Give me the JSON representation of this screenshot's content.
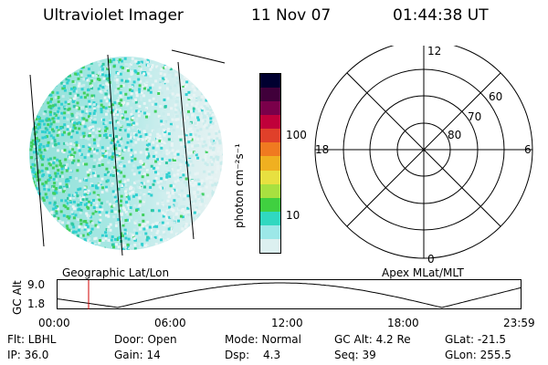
{
  "header": {
    "title": "Ultraviolet Imager",
    "date": "11 Nov 07",
    "time": "01:44:38 UT"
  },
  "colorbar": {
    "unit_label": "photon cm⁻²s⁻¹",
    "ticks": [
      "100",
      "10"
    ],
    "colors": [
      "#000030",
      "#40003a",
      "#7a004a",
      "#c0003a",
      "#e0402a",
      "#f07a20",
      "#f0b020",
      "#e8e040",
      "#a8e040",
      "#40d040",
      "#30d8c0",
      "#9ce8e8",
      "#dcf0f0"
    ]
  },
  "polar_plot": {
    "mlt_labels": [
      "12",
      "18",
      "6",
      "0"
    ],
    "lat_labels": [
      "60",
      "70",
      "80"
    ]
  },
  "timeline": {
    "left_caption": "Geographic Lat/Lon",
    "right_caption": "Apex MLat/MLT",
    "axis_label": "GC Alt",
    "y_ticks": [
      "9.0",
      "1.8"
    ],
    "x_ticks": [
      "00:00",
      "06:00",
      "12:00",
      "18:00",
      "23:59"
    ]
  },
  "info": {
    "row1": {
      "filter": "Flt: LBHL",
      "door": "Door: Open",
      "mode": "Mode: Normal",
      "gc_alt": "GC Alt: 4.2 Re",
      "glat": "GLat: -21.5"
    },
    "row2": {
      "ip": "IP: 36.0",
      "gain": "Gain: 14",
      "dsp_label": "Dsp:",
      "dsp_value": "4.3",
      "seq": "Seq: 39",
      "glon": "GLon: 255.5"
    }
  }
}
